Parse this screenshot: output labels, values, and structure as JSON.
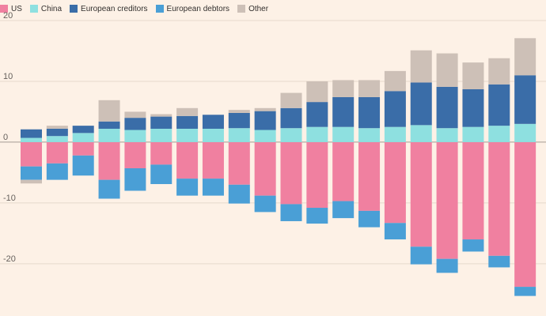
{
  "chart_data": {
    "type": "bar",
    "stacked": true,
    "title": "",
    "xlabel": "",
    "ylabel": "",
    "ylim": [
      -26,
      20
    ],
    "yticks": [
      20,
      10,
      0,
      -10,
      -20
    ],
    "grid": true,
    "legend_position": "top-left",
    "series": [
      {
        "name": "US",
        "color": "#f080a0",
        "values": [
          -4.0,
          -3.5,
          -2.2,
          -6.2,
          -4.3,
          -3.7,
          -6.0,
          -6.0,
          -7.0,
          -8.8,
          -10.2,
          -10.8,
          -9.7,
          -11.3,
          -13.3,
          -17.2,
          -19.2,
          -16.0,
          -18.7,
          -23.8
        ]
      },
      {
        "name": "China",
        "color": "#8ee0e0",
        "values": [
          0.7,
          1.0,
          1.5,
          2.2,
          2.0,
          2.2,
          2.2,
          2.2,
          2.3,
          2.0,
          2.3,
          2.5,
          2.5,
          2.3,
          2.5,
          2.8,
          2.3,
          2.5,
          2.7,
          3.0
        ]
      },
      {
        "name": "European creditors",
        "color": "#3a6da8",
        "values": [
          1.4,
          1.2,
          1.2,
          1.2,
          2.0,
          2.0,
          2.1,
          2.3,
          2.5,
          3.1,
          3.3,
          4.1,
          4.9,
          5.1,
          5.9,
          7.0,
          6.8,
          6.2,
          6.8,
          8.0
        ]
      },
      {
        "name": "European debtors",
        "color": "#4a9fd6",
        "values": [
          -2.2,
          -2.7,
          -3.3,
          -3.1,
          -3.7,
          -3.2,
          -2.8,
          -2.8,
          -3.1,
          -2.7,
          -2.8,
          -2.6,
          -2.8,
          -2.7,
          -2.7,
          -2.9,
          -2.3,
          -2.0,
          -1.9,
          -1.5
        ]
      },
      {
        "name": "Other",
        "color": "#cdc0b7",
        "values": [
          -0.6,
          0.5,
          0,
          3.5,
          1.0,
          0.4,
          1.3,
          0,
          0.5,
          0.5,
          2.5,
          3.4,
          2.8,
          2.8,
          3.3,
          5.3,
          5.5,
          4.4,
          4.3,
          6.1
        ]
      }
    ]
  }
}
